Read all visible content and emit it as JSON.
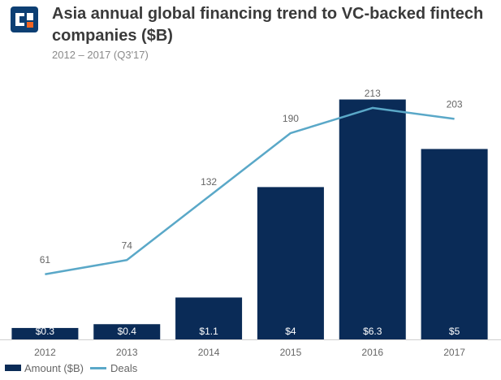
{
  "header": {
    "title": "Asia annual global financing trend to VC-backed fintech companies ($B)",
    "subtitle": "2012 – 2017 (Q3'17)"
  },
  "colors": {
    "bar": "#0a2b57",
    "line": "#5aa8c8",
    "logo_blue": "#0d3f73",
    "logo_orange": "#f26522"
  },
  "chart_data": {
    "type": "bar",
    "categories": [
      "2012",
      "2013",
      "2014",
      "2015",
      "2016",
      "2017"
    ],
    "series": [
      {
        "name": "Amount ($B)",
        "type": "bar",
        "values": [
          0.3,
          0.4,
          1.1,
          4,
          6.3,
          5
        ],
        "labels": [
          "$0.3",
          "$0.4",
          "$1.1",
          "$4",
          "$6.3",
          "$5"
        ]
      },
      {
        "name": "Deals",
        "type": "line",
        "values": [
          61,
          74,
          132,
          190,
          213,
          203
        ],
        "labels": [
          "61",
          "74",
          "132",
          "190",
          "213",
          "203"
        ]
      }
    ],
    "ylim_amount": [
      0,
      7.1
    ],
    "ylim_deals": [
      0,
      230
    ],
    "grid": false,
    "legend": "bottom-left"
  }
}
